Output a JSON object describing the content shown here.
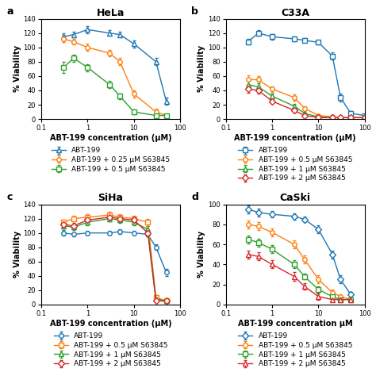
{
  "chart_data": [
    {
      "type": "line",
      "panel_label": "a",
      "title": "HeLa",
      "x_label": "ABT-199 concentration (μM)",
      "y_label": "% Viability",
      "log": "x",
      "legend": "below",
      "xlim": [
        0.1,
        100
      ],
      "xticks": [
        0.1,
        1,
        10,
        100
      ],
      "ylim": [
        0,
        140
      ],
      "yticks": [
        0,
        20,
        40,
        60,
        80,
        100,
        120,
        140
      ],
      "series": [
        {
          "name": "ABT-199",
          "marker": "triangle",
          "x": [
            0.3,
            0.5,
            1,
            3,
            5,
            10,
            30,
            50
          ],
          "values": [
            115,
            118,
            125,
            120,
            118,
            105,
            80,
            25
          ],
          "yerr": [
            5,
            4,
            5,
            4,
            4,
            5,
            5,
            5
          ]
        },
        {
          "name": "ABT-199 + 0.25 μM S63845",
          "marker": "circle",
          "x": [
            0.3,
            0.5,
            1,
            3,
            5,
            10,
            30,
            50
          ],
          "values": [
            112,
            108,
            100,
            92,
            80,
            35,
            10,
            5
          ],
          "yerr": [
            5,
            4,
            5,
            4,
            5,
            5,
            4,
            2
          ]
        },
        {
          "name": "ABT-199 + 0.5 μM S63845",
          "marker": "square",
          "x": [
            0.3,
            0.5,
            1,
            3,
            5,
            10,
            30,
            50
          ],
          "values": [
            72,
            85,
            72,
            48,
            32,
            10,
            5,
            5
          ],
          "yerr": [
            8,
            5,
            5,
            5,
            4,
            3,
            2,
            2
          ]
        }
      ]
    },
    {
      "type": "line",
      "panel_label": "b",
      "title": "C33A",
      "x_label": "ABT-199 concentration (μM)",
      "y_label": "% Viability",
      "log": "x",
      "legend": "below",
      "xlim": [
        0.1,
        100
      ],
      "xticks": [
        0.1,
        1,
        10,
        100
      ],
      "ylim": [
        0,
        140
      ],
      "yticks": [
        0,
        20,
        40,
        60,
        80,
        100,
        120,
        140
      ],
      "series": [
        {
          "name": "ABT-199",
          "marker": "square",
          "x": [
            0.3,
            0.5,
            1,
            3,
            5,
            10,
            20,
            30,
            50,
            100
          ],
          "values": [
            108,
            120,
            115,
            112,
            110,
            107,
            88,
            30,
            8,
            5
          ],
          "yerr": [
            4,
            4,
            4,
            3,
            3,
            3,
            5,
            5,
            3,
            2
          ]
        },
        {
          "name": "ABT-199 + 0.5 μM S63845",
          "marker": "circle",
          "x": [
            0.3,
            0.5,
            1,
            3,
            5,
            10,
            20,
            30,
            50,
            100
          ],
          "values": [
            55,
            55,
            42,
            30,
            15,
            5,
            3,
            2,
            2,
            2
          ],
          "yerr": [
            6,
            5,
            4,
            4,
            3,
            2,
            1,
            1,
            1,
            1
          ]
        },
        {
          "name": "ABT-199 + 1 μM S63845",
          "marker": "triangle",
          "x": [
            0.3,
            0.5,
            1,
            3,
            5,
            10,
            20,
            30,
            50,
            100
          ],
          "values": [
            48,
            45,
            32,
            18,
            8,
            3,
            2,
            2,
            2,
            2
          ],
          "yerr": [
            5,
            5,
            4,
            3,
            2,
            1,
            1,
            1,
            1,
            1
          ]
        },
        {
          "name": "ABT-199 + 2 μM S63845",
          "marker": "diamond",
          "x": [
            0.3,
            0.5,
            1,
            3,
            5,
            10,
            20,
            30,
            50,
            100
          ],
          "values": [
            42,
            40,
            25,
            12,
            5,
            2,
            2,
            2,
            2,
            2
          ],
          "yerr": [
            5,
            5,
            3,
            3,
            2,
            1,
            1,
            1,
            1,
            1
          ]
        }
      ]
    },
    {
      "type": "line",
      "panel_label": "c",
      "title": "SiHa",
      "x_label": "ABT-199 concentration (μM)",
      "y_label": "% Viability",
      "log": "x",
      "legend": "below",
      "xlim": [
        0.1,
        100
      ],
      "xticks": [
        0.1,
        1,
        10,
        100
      ],
      "ylim": [
        0,
        140
      ],
      "yticks": [
        0,
        20,
        40,
        60,
        80,
        100,
        120,
        140
      ],
      "series": [
        {
          "name": "ABT-199",
          "marker": "circle",
          "x": [
            0.3,
            0.5,
            1,
            3,
            5,
            10,
            20,
            30,
            50
          ],
          "values": [
            100,
            98,
            100,
            100,
            102,
            100,
            98,
            80,
            45
          ],
          "yerr": [
            4,
            3,
            3,
            3,
            3,
            3,
            3,
            4,
            5
          ]
        },
        {
          "name": "ABT-199 + 0.5 μM S63845",
          "marker": "square",
          "x": [
            0.3,
            0.5,
            1,
            3,
            5,
            10,
            20,
            30,
            50
          ],
          "values": [
            115,
            120,
            122,
            125,
            122,
            120,
            115,
            10,
            5
          ],
          "yerr": [
            4,
            4,
            4,
            5,
            4,
            4,
            5,
            3,
            2
          ]
        },
        {
          "name": "ABT-199 + 1 μM S63845",
          "marker": "triangle",
          "x": [
            0.3,
            0.5,
            1,
            3,
            5,
            10,
            20,
            30,
            50
          ],
          "values": [
            110,
            108,
            115,
            120,
            118,
            115,
            105,
            8,
            5
          ],
          "yerr": [
            4,
            4,
            4,
            4,
            4,
            4,
            5,
            2,
            2
          ]
        },
        {
          "name": "ABT-199 + 2 μM S63845",
          "marker": "diamond",
          "x": [
            0.3,
            0.5,
            1,
            3,
            5,
            10,
            20,
            30,
            50
          ],
          "values": [
            112,
            110,
            118,
            122,
            120,
            118,
            100,
            5,
            5
          ],
          "yerr": [
            4,
            4,
            4,
            4,
            4,
            4,
            5,
            2,
            2
          ]
        }
      ]
    },
    {
      "type": "line",
      "panel_label": "d",
      "title": "CaSki",
      "x_label": "ABT-199 concentration μM",
      "y_label": "% Viability",
      "log": "x",
      "legend": "below",
      "xlim": [
        0.1,
        100
      ],
      "xticks": [
        0.1,
        1,
        10,
        100
      ],
      "ylim": [
        0,
        100
      ],
      "yticks": [
        0,
        20,
        40,
        60,
        80,
        100
      ],
      "series": [
        {
          "name": "ABT-199",
          "marker": "diamond",
          "x": [
            0.3,
            0.5,
            1,
            3,
            5,
            10,
            20,
            30,
            50
          ],
          "values": [
            95,
            92,
            90,
            88,
            85,
            75,
            50,
            25,
            10
          ],
          "yerr": [
            4,
            4,
            3,
            3,
            3,
            4,
            4,
            4,
            3
          ]
        },
        {
          "name": "ABT-199 + 0.5 μM S63845",
          "marker": "circle",
          "x": [
            0.3,
            0.5,
            1,
            3,
            5,
            10,
            20,
            30,
            50
          ],
          "values": [
            80,
            78,
            72,
            60,
            45,
            25,
            12,
            8,
            5
          ],
          "yerr": [
            4,
            4,
            4,
            4,
            4,
            4,
            3,
            2,
            2
          ]
        },
        {
          "name": "ABT-199 + 1 μM S63845",
          "marker": "square",
          "x": [
            0.3,
            0.5,
            1,
            3,
            5,
            10,
            20,
            30,
            50
          ],
          "values": [
            65,
            62,
            55,
            40,
            28,
            15,
            8,
            5,
            5
          ],
          "yerr": [
            4,
            4,
            4,
            4,
            3,
            3,
            2,
            2,
            2
          ]
        },
        {
          "name": "ABT-199 + 2 μM S63845",
          "marker": "triangle",
          "x": [
            0.3,
            0.5,
            1,
            3,
            5,
            10,
            20,
            30,
            50
          ],
          "values": [
            50,
            48,
            40,
            28,
            18,
            8,
            5,
            5,
            5
          ],
          "yerr": [
            4,
            4,
            4,
            4,
            3,
            3,
            2,
            2,
            2
          ]
        }
      ]
    }
  ]
}
